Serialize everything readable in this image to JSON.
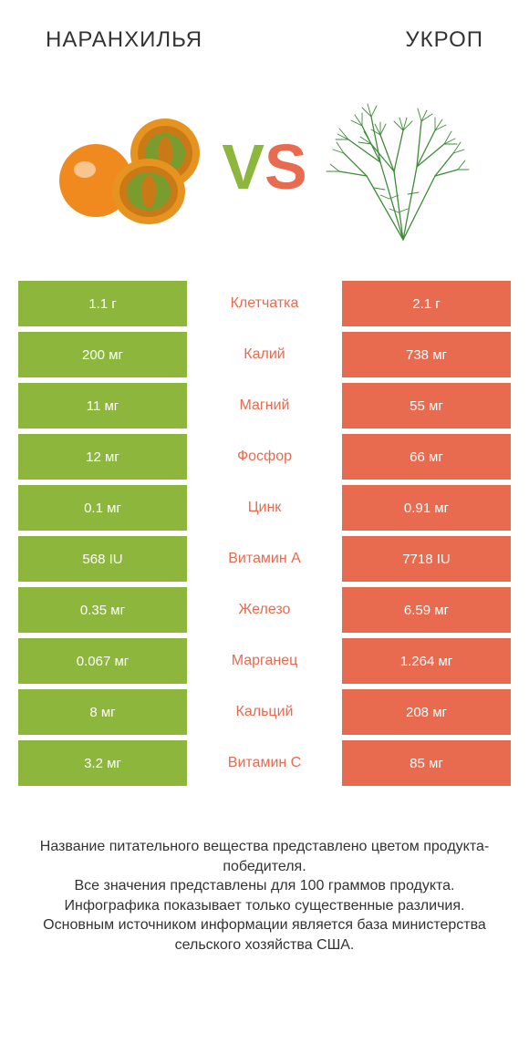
{
  "header": {
    "left": "НАРАНХИЛЬЯ",
    "right": "УКРОП"
  },
  "vs": {
    "v": "V",
    "s": "S"
  },
  "colors": {
    "green": "#8cb63c",
    "orange": "#e86a4f",
    "mid_green_text": "#8cb63c",
    "mid_orange_text": "#e86a4f",
    "vs_v": "#8cb63c",
    "vs_s": "#e86a4f",
    "header_text": "#333333",
    "footer_text": "#333333",
    "cell_text": "#ffffff",
    "background": "#ffffff"
  },
  "rows": [
    {
      "nutrient": "Клетчатка",
      "left": "1.1 г",
      "right": "2.1 г",
      "winner": "right"
    },
    {
      "nutrient": "Калий",
      "left": "200 мг",
      "right": "738 мг",
      "winner": "right"
    },
    {
      "nutrient": "Магний",
      "left": "11 мг",
      "right": "55 мг",
      "winner": "right"
    },
    {
      "nutrient": "Фосфор",
      "left": "12 мг",
      "right": "66 мг",
      "winner": "right"
    },
    {
      "nutrient": "Цинк",
      "left": "0.1 мг",
      "right": "0.91 мг",
      "winner": "right"
    },
    {
      "nutrient": "Витамин A",
      "left": "568 IU",
      "right": "7718 IU",
      "winner": "right"
    },
    {
      "nutrient": "Железо",
      "left": "0.35 мг",
      "right": "6.59 мг",
      "winner": "right"
    },
    {
      "nutrient": "Марганец",
      "left": "0.067 мг",
      "right": "1.264 мг",
      "winner": "right"
    },
    {
      "nutrient": "Кальций",
      "left": "8 мг",
      "right": "208 мг",
      "winner": "right"
    },
    {
      "nutrient": "Витамин C",
      "left": "3.2 мг",
      "right": "85 мг",
      "winner": "right"
    }
  ],
  "footer": {
    "line1": "Название питательного вещества представлено цветом продукта-победителя.",
    "line2": "Все значения представлены для 100 граммов продукта.",
    "line3": "Инфографика показывает только существенные различия.",
    "line4": "Основным источником информации является база министерства сельского хозяйства США."
  }
}
